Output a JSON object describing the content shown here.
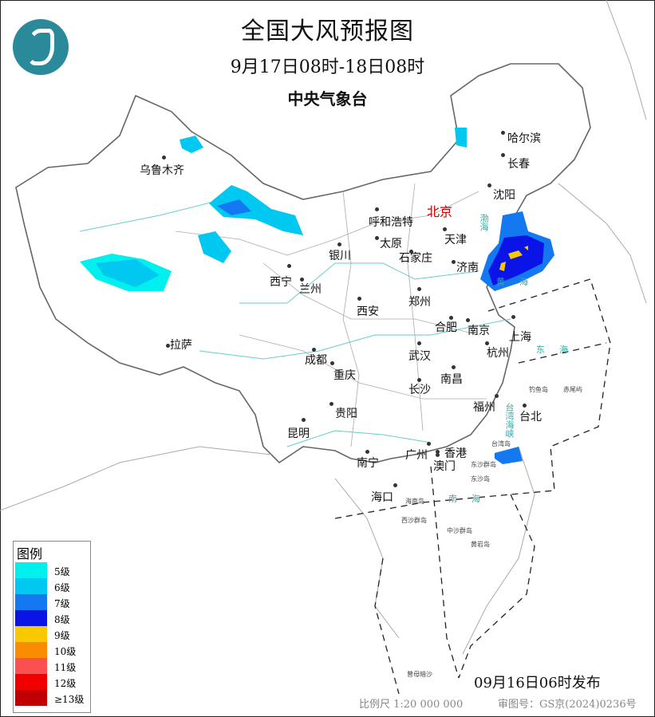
{
  "title": "全国大风预报图",
  "period": "9月17日08时-18日08时",
  "agency": "中央气象台",
  "logo_icon": "cma-logo-icon",
  "capital": "北京",
  "cities": [
    "乌鲁木齐",
    "哈尔滨",
    "长春",
    "沈阳",
    "呼和浩特",
    "天津",
    "太原",
    "石家庄",
    "银川",
    "济南",
    "西宁",
    "兰州",
    "郑州",
    "西安",
    "合肥",
    "南京",
    "上海",
    "杭州",
    "拉萨",
    "成都",
    "武汉",
    "重庆",
    "南昌",
    "长沙",
    "贵阳",
    "福州",
    "台北",
    "昆明",
    "南宁",
    "广州",
    "香港",
    "澳门",
    "海口"
  ],
  "islands": [
    "钓鱼岛",
    "赤尾屿",
    "台湾岛",
    "东沙群岛",
    "东沙岛",
    "海南岛",
    "西沙群岛",
    "中沙群岛",
    "黄岩岛",
    "曾母暗沙"
  ],
  "seas": [
    "渤海",
    "黄海",
    "东海",
    "南海",
    "台湾海峡"
  ],
  "legend": {
    "title": "图例",
    "items": [
      {
        "label": "5级",
        "color": "#00f0f0"
      },
      {
        "label": "6级",
        "color": "#00c8f0"
      },
      {
        "label": "7级",
        "color": "#1478f0"
      },
      {
        "label": "8级",
        "color": "#0a14e6"
      },
      {
        "label": "9级",
        "color": "#fac800"
      },
      {
        "label": "10级",
        "color": "#fa8c00"
      },
      {
        "label": "11级",
        "color": "#fa5050"
      },
      {
        "label": "12级",
        "color": "#f00000"
      },
      {
        "label": "≥13级",
        "color": "#c00000"
      }
    ]
  },
  "issued": "09月16日06时发布",
  "scale": "比例尺 1:20 000 000",
  "map_number": "审图号：GS京(2024)0236号"
}
